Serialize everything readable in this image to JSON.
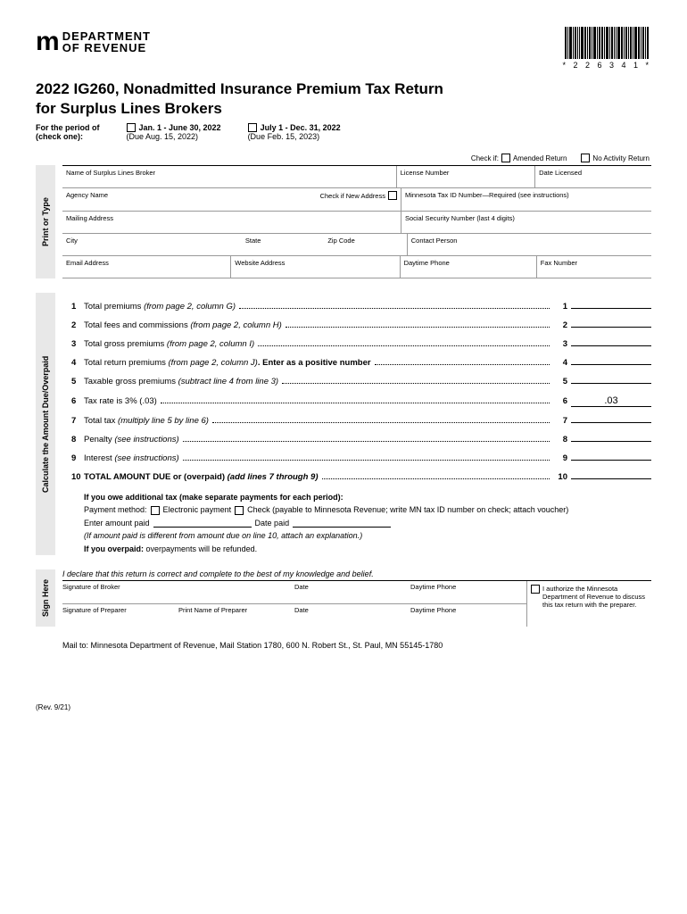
{
  "header": {
    "dept_line1": "DEPARTMENT",
    "dept_line2": "OF REVENUE",
    "barcode_text": "* 2 2 6 3 4 1 *"
  },
  "title": {
    "line1": "2022 IG260, Nonadmitted Insurance Premium Tax Return",
    "line2": "for Surplus Lines Brokers"
  },
  "period": {
    "label1": "For the period of",
    "label2": "(check one):",
    "opt1_label": "Jan. 1 - June 30, 2022",
    "opt1_due": "(Due Aug. 15, 2022)",
    "opt2_label": "July 1 - Dec. 31, 2022",
    "opt2_due": "(Due Feb. 15, 2023)"
  },
  "checks": {
    "check_if": "Check if:",
    "amended": "Amended Return",
    "no_activity": "No Activity Return"
  },
  "info": {
    "broker_name": "Name of Surplus Lines Broker",
    "license_num": "License Number",
    "date_licensed": "Date Licensed",
    "agency": "Agency Name",
    "new_addr": "Check if New Address",
    "mn_tax_id": "Minnesota Tax ID Number—Required (see instructions)",
    "mailing": "Mailing Address",
    "ssn": "Social Security Number (last 4 digits)",
    "city": "City",
    "state": "State",
    "zip": "Zip Code",
    "contact": "Contact Person",
    "email": "Email Address",
    "website": "Website Address",
    "day_phone": "Daytime Phone",
    "fax": "Fax Number"
  },
  "side_labels": {
    "print": "Print or Type",
    "calc": "Calculate the Amount Due/Overpaid",
    "sign": "Sign Here"
  },
  "lines": {
    "l1": {
      "n": "1",
      "t": "Total premiums ",
      "i": "(from page 2, column G)",
      "v": ""
    },
    "l2": {
      "n": "2",
      "t": "Total fees and commissions ",
      "i": "(from page 2, column H)",
      "v": ""
    },
    "l3": {
      "n": "3",
      "t": "Total gross premiums ",
      "i": "(from page 2, column I)",
      "v": ""
    },
    "l4": {
      "n": "4",
      "t": "Total return premiums ",
      "i": "(from page 2, column J)",
      "t2": ". Enter as a positive number",
      "v": ""
    },
    "l5": {
      "n": "5",
      "t": "Taxable gross premiums ",
      "i": "(subtract line 4 from line 3)",
      "v": ""
    },
    "l6": {
      "n": "6",
      "t": "Tax rate is 3% (.03)",
      "v": ".03"
    },
    "l7": {
      "n": "7",
      "t": "Total tax ",
      "i": "(multiply line 5 by line 6)",
      "v": ""
    },
    "l8": {
      "n": "8",
      "t": "Penalty ",
      "i": "(see instructions)",
      "v": ""
    },
    "l9": {
      "n": "9",
      "t": "Interest ",
      "i": "(see instructions)",
      "v": ""
    },
    "l10": {
      "n": "10",
      "t": "TOTAL AMOUNT DUE or (overpaid) ",
      "i": "(add lines 7 through 9)",
      "v": ""
    }
  },
  "payment": {
    "owe": "If you owe additional tax (make separate payments for each period):",
    "method_label": "Payment method:",
    "electronic": "Electronic payment",
    "check": "Check (payable to Minnesota Revenue; write MN tax ID number on check; attach voucher)",
    "enter_paid": "Enter amount paid",
    "date_paid": "Date paid",
    "diff_note": "(If amount paid is different from amount due on line 10, attach an explanation.)",
    "overpaid": "If you overpaid:",
    "overpaid_txt": " overpayments will be refunded."
  },
  "sign": {
    "declare": "I declare that this return is correct and complete to the best of my knowledge and belief.",
    "sig_broker": "Signature of Broker",
    "date": "Date",
    "day_phone": "Daytime Phone",
    "sig_preparer": "Signature of Preparer",
    "print_preparer": "Print Name of Preparer",
    "authorize": "I authorize the Minnesota Department of Revenue to discuss this tax return with the preparer."
  },
  "mail_to": "Mail to: Minnesota Department of Revenue, Mail Station 1780, 600 N. Robert St., St. Paul, MN 55145-1780",
  "footer": "(Rev. 9/21)",
  "colors": {
    "bg": "#ffffff",
    "text": "#000000",
    "side": "#e8e8e8",
    "border": "#999999"
  }
}
